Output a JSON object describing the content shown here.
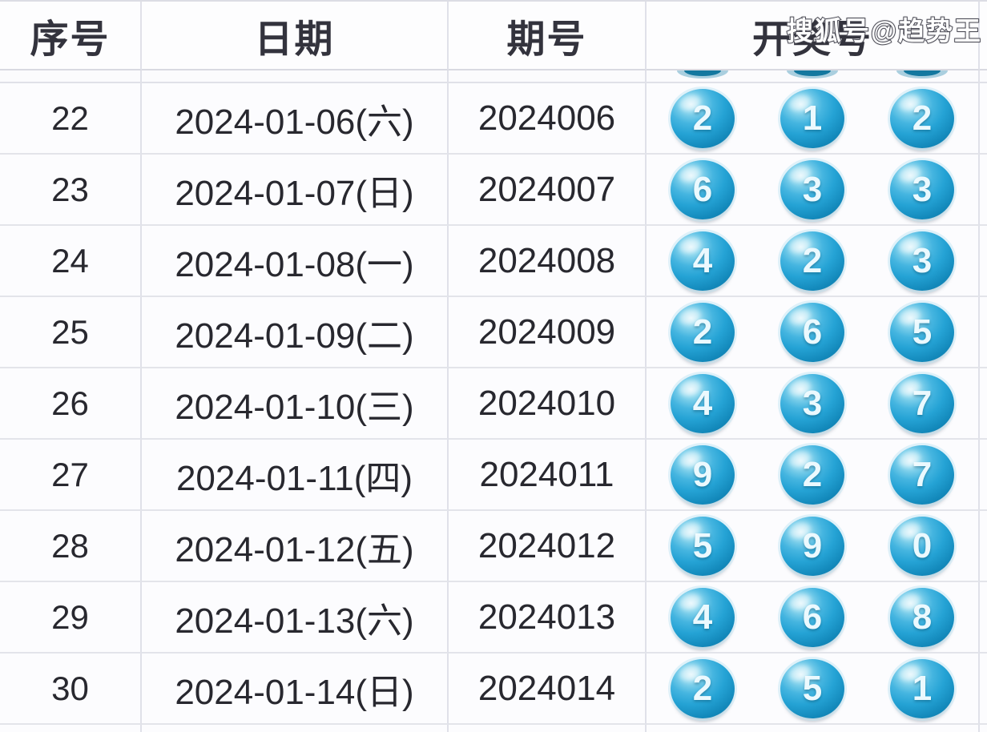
{
  "watermark": "搜狐号@趋势王",
  "table": {
    "headers": [
      "序号",
      "日期",
      "期号",
      "开奖号"
    ],
    "rows": [
      {
        "seq": "22",
        "date": "2024-01-06(六)",
        "issue": "2024006",
        "balls": [
          "2",
          "1",
          "2"
        ]
      },
      {
        "seq": "23",
        "date": "2024-01-07(日)",
        "issue": "2024007",
        "balls": [
          "6",
          "3",
          "3"
        ]
      },
      {
        "seq": "24",
        "date": "2024-01-08(一)",
        "issue": "2024008",
        "balls": [
          "4",
          "2",
          "3"
        ]
      },
      {
        "seq": "25",
        "date": "2024-01-09(二)",
        "issue": "2024009",
        "balls": [
          "2",
          "6",
          "5"
        ]
      },
      {
        "seq": "26",
        "date": "2024-01-10(三)",
        "issue": "2024010",
        "balls": [
          "4",
          "3",
          "7"
        ]
      },
      {
        "seq": "27",
        "date": "2024-01-11(四)",
        "issue": "2024011",
        "balls": [
          "9",
          "2",
          "7"
        ]
      },
      {
        "seq": "28",
        "date": "2024-01-12(五)",
        "issue": "2024012",
        "balls": [
          "5",
          "9",
          "0"
        ]
      },
      {
        "seq": "29",
        "date": "2024-01-13(六)",
        "issue": "2024013",
        "balls": [
          "4",
          "6",
          "8"
        ]
      },
      {
        "seq": "30",
        "date": "2024-01-14(日)",
        "issue": "2024014",
        "balls": [
          "2",
          "5",
          "1"
        ]
      }
    ]
  },
  "chart_data": {
    "type": "table",
    "title": "",
    "columns": [
      "序号",
      "日期",
      "期号",
      "开奖号"
    ],
    "rows": [
      [
        "22",
        "2024-01-06(六)",
        "2024006",
        "2 1 2"
      ],
      [
        "23",
        "2024-01-07(日)",
        "2024007",
        "6 3 3"
      ],
      [
        "24",
        "2024-01-08(一)",
        "2024008",
        "4 2 3"
      ],
      [
        "25",
        "2024-01-09(二)",
        "2024009",
        "2 6 5"
      ],
      [
        "26",
        "2024-01-10(三)",
        "2024010",
        "4 3 7"
      ],
      [
        "27",
        "2024-01-11(四)",
        "2024011",
        "9 2 7"
      ],
      [
        "28",
        "2024-01-12(五)",
        "2024012",
        "5 9 0"
      ],
      [
        "29",
        "2024-01-13(六)",
        "2024013",
        "4 6 8"
      ],
      [
        "30",
        "2024-01-14(日)",
        "2024014",
        "2 5 1"
      ]
    ]
  },
  "colors": {
    "ball_main": "#25a3d5",
    "ball_dark_rim": "#0d7cab",
    "ball_highlight": "#d9f2fa",
    "ball_number": "#ebf9fe",
    "header_text": "#33333d",
    "body_text": "#28282f",
    "grid_line": "#e0e1e9",
    "row_background": "#fcfcfe"
  }
}
